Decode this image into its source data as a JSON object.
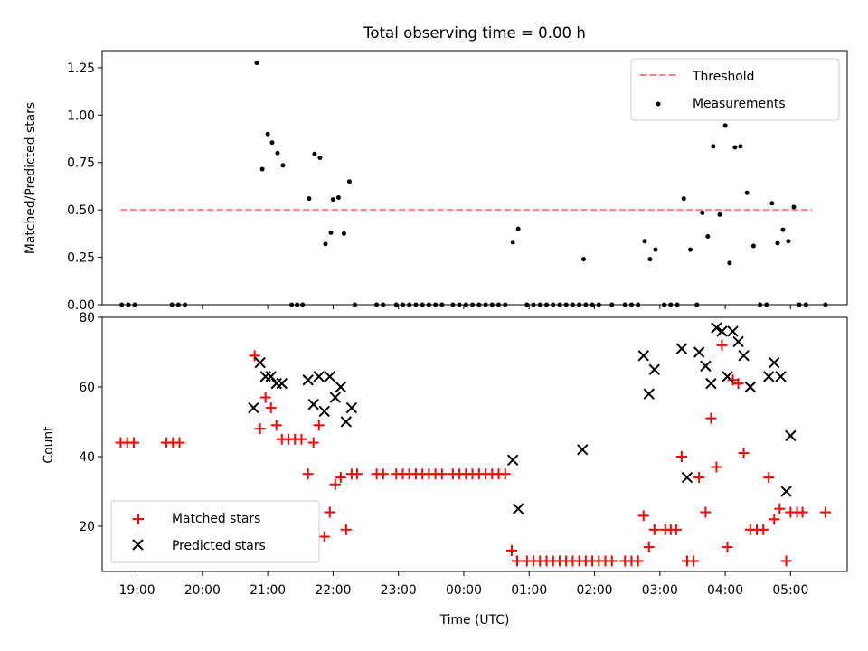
{
  "chart_data": [
    {
      "type": "scatter",
      "title": "Total observing time = 0.00 h",
      "xlabel": "",
      "ylabel": "Matched/Predicted stars",
      "ylim": [
        0,
        1.34
      ],
      "yticks": [
        "0.00",
        "0.25",
        "0.50",
        "0.75",
        "1.00",
        "1.25"
      ],
      "xlim": [
        "18:28",
        "05:52"
      ],
      "legend_position": "top-right",
      "grid": false,
      "threshold": {
        "name": "Threshold",
        "y": 0.5,
        "x_start": "18:45",
        "x_end": "05:20",
        "color": "#ff7f7f"
      },
      "series": [
        {
          "name": "Measurements",
          "color": "#000000",
          "points": [
            [
              "18:46",
              0
            ],
            [
              "18:52",
              0
            ],
            [
              "18:58",
              0
            ],
            [
              "19:32",
              0
            ],
            [
              "19:38",
              0
            ],
            [
              "19:44",
              0
            ],
            [
              "20:50",
              1.275
            ],
            [
              "20:55",
              0.715
            ],
            [
              "21:00",
              0.9
            ],
            [
              "21:04",
              0.855
            ],
            [
              "21:09",
              0.8
            ],
            [
              "21:14",
              0.735
            ],
            [
              "21:22",
              0
            ],
            [
              "21:27",
              0
            ],
            [
              "21:32",
              0
            ],
            [
              "21:38",
              0.56
            ],
            [
              "21:43",
              0.795
            ],
            [
              "21:48",
              0.775
            ],
            [
              "21:53",
              0.32
            ],
            [
              "21:58",
              0.38
            ],
            [
              "22:00",
              0.555
            ],
            [
              "22:05",
              0.565
            ],
            [
              "22:10",
              0.375
            ],
            [
              "22:15",
              0.65
            ],
            [
              "22:20",
              0
            ],
            [
              "22:40",
              0
            ],
            [
              "22:46",
              0
            ],
            [
              "22:58",
              0
            ],
            [
              "23:04",
              0
            ],
            [
              "23:10",
              0
            ],
            [
              "23:16",
              0
            ],
            [
              "23:22",
              0
            ],
            [
              "23:28",
              0
            ],
            [
              "23:34",
              0
            ],
            [
              "23:40",
              0
            ],
            [
              "23:50",
              0
            ],
            [
              "23:56",
              0
            ],
            [
              "00:02",
              0
            ],
            [
              "00:08",
              0
            ],
            [
              "00:14",
              0
            ],
            [
              "00:20",
              0
            ],
            [
              "00:26",
              0
            ],
            [
              "00:32",
              0
            ],
            [
              "00:38",
              0
            ],
            [
              "00:45",
              0.33
            ],
            [
              "00:50",
              0.4
            ],
            [
              "00:58",
              0
            ],
            [
              "01:04",
              0
            ],
            [
              "01:10",
              0
            ],
            [
              "01:16",
              0
            ],
            [
              "01:22",
              0
            ],
            [
              "01:28",
              0
            ],
            [
              "01:34",
              0
            ],
            [
              "01:40",
              0
            ],
            [
              "01:46",
              0
            ],
            [
              "01:52",
              0
            ],
            [
              "01:50",
              0.24
            ],
            [
              "01:58",
              0
            ],
            [
              "02:04",
              0
            ],
            [
              "02:16",
              0
            ],
            [
              "02:28",
              0
            ],
            [
              "02:34",
              0
            ],
            [
              "02:40",
              0
            ],
            [
              "02:46",
              0.335
            ],
            [
              "02:51",
              0.24
            ],
            [
              "02:56",
              0.29
            ],
            [
              "03:04",
              0
            ],
            [
              "03:10",
              0
            ],
            [
              "03:16",
              0
            ],
            [
              "03:22",
              0.56
            ],
            [
              "03:28",
              0.29
            ],
            [
              "03:34",
              0
            ],
            [
              "03:39",
              0.485
            ],
            [
              "03:44",
              0.36
            ],
            [
              "03:49",
              0.835
            ],
            [
              "03:55",
              0.475
            ],
            [
              "04:00",
              0.945
            ],
            [
              "04:04",
              0.22
            ],
            [
              "04:09",
              0.83
            ],
            [
              "04:14",
              0.835
            ],
            [
              "04:20",
              0.59
            ],
            [
              "04:26",
              0.31
            ],
            [
              "04:32",
              0
            ],
            [
              "04:38",
              0
            ],
            [
              "04:43",
              0.535
            ],
            [
              "04:48",
              0.325
            ],
            [
              "04:53",
              0.395
            ],
            [
              "04:58",
              0.335
            ],
            [
              "05:03",
              0.515
            ],
            [
              "05:08",
              0
            ],
            [
              "05:14",
              0
            ],
            [
              "05:32",
              0
            ]
          ]
        }
      ]
    },
    {
      "type": "scatter",
      "title": "",
      "xlabel": "Time (UTC)",
      "ylabel": "Count",
      "ylim": [
        7,
        80
      ],
      "yticks": [
        "20",
        "40",
        "60",
        "80"
      ],
      "xlim": [
        "18:28",
        "05:52"
      ],
      "xticks": [
        "19:00",
        "20:00",
        "21:00",
        "22:00",
        "23:00",
        "00:00",
        "01:00",
        "02:00",
        "03:00",
        "04:00",
        "05:00"
      ],
      "legend_position": "bottom-left",
      "grid": false,
      "series": [
        {
          "name": "Matched stars",
          "color": "#ff0000",
          "marker": "plus",
          "points": [
            [
              "18:45",
              44
            ],
            [
              "18:51",
              44
            ],
            [
              "18:57",
              44
            ],
            [
              "19:27",
              44
            ],
            [
              "19:33",
              44
            ],
            [
              "19:39",
              44
            ],
            [
              "20:48",
              69
            ],
            [
              "20:53",
              48
            ],
            [
              "20:58",
              57
            ],
            [
              "21:03",
              54
            ],
            [
              "21:08",
              49
            ],
            [
              "21:13",
              45
            ],
            [
              "21:19",
              45
            ],
            [
              "21:25",
              45
            ],
            [
              "21:31",
              45
            ],
            [
              "21:37",
              35
            ],
            [
              "21:42",
              44
            ],
            [
              "21:47",
              49
            ],
            [
              "21:52",
              17
            ],
            [
              "21:57",
              24
            ],
            [
              "22:02",
              32
            ],
            [
              "22:07",
              34
            ],
            [
              "22:12",
              19
            ],
            [
              "22:17",
              35
            ],
            [
              "22:22",
              35
            ],
            [
              "22:40",
              35
            ],
            [
              "22:46",
              35
            ],
            [
              "22:58",
              35
            ],
            [
              "23:04",
              35
            ],
            [
              "23:10",
              35
            ],
            [
              "23:16",
              35
            ],
            [
              "23:22",
              35
            ],
            [
              "23:28",
              35
            ],
            [
              "23:34",
              35
            ],
            [
              "23:40",
              35
            ],
            [
              "23:50",
              35
            ],
            [
              "23:56",
              35
            ],
            [
              "00:02",
              35
            ],
            [
              "00:08",
              35
            ],
            [
              "00:14",
              35
            ],
            [
              "00:20",
              35
            ],
            [
              "00:26",
              35
            ],
            [
              "00:32",
              35
            ],
            [
              "00:38",
              35
            ],
            [
              "00:44",
              13
            ],
            [
              "00:49",
              10
            ],
            [
              "00:58",
              10
            ],
            [
              "01:04",
              10
            ],
            [
              "01:10",
              10
            ],
            [
              "01:16",
              10
            ],
            [
              "01:22",
              10
            ],
            [
              "01:28",
              10
            ],
            [
              "01:34",
              10
            ],
            [
              "01:40",
              10
            ],
            [
              "01:46",
              10
            ],
            [
              "01:52",
              10
            ],
            [
              "01:58",
              10
            ],
            [
              "02:04",
              10
            ],
            [
              "02:10",
              10
            ],
            [
              "02:16",
              10
            ],
            [
              "02:28",
              10
            ],
            [
              "02:34",
              10
            ],
            [
              "02:40",
              10
            ],
            [
              "02:45",
              23
            ],
            [
              "02:50",
              14
            ],
            [
              "02:55",
              19
            ],
            [
              "03:05",
              19
            ],
            [
              "03:10",
              19
            ],
            [
              "03:15",
              19
            ],
            [
              "03:20",
              40
            ],
            [
              "03:25",
              10
            ],
            [
              "03:31",
              10
            ],
            [
              "03:36",
              34
            ],
            [
              "03:42",
              24
            ],
            [
              "03:47",
              51
            ],
            [
              "03:52",
              37
            ],
            [
              "03:57",
              72
            ],
            [
              "04:02",
              14
            ],
            [
              "04:07",
              62
            ],
            [
              "04:12",
              61
            ],
            [
              "04:17",
              41
            ],
            [
              "04:23",
              19
            ],
            [
              "04:29",
              19
            ],
            [
              "04:35",
              19
            ],
            [
              "04:40",
              34
            ],
            [
              "04:45",
              22
            ],
            [
              "04:50",
              25
            ],
            [
              "04:56",
              10
            ],
            [
              "05:00",
              24
            ],
            [
              "05:06",
              24
            ],
            [
              "05:11",
              24
            ],
            [
              "05:32",
              24
            ]
          ]
        },
        {
          "name": "Predicted stars",
          "color": "#000000",
          "marker": "x",
          "points": [
            [
              "20:47",
              54
            ],
            [
              "20:53",
              67
            ],
            [
              "20:58",
              63
            ],
            [
              "21:03",
              63
            ],
            [
              "21:08",
              61
            ],
            [
              "21:13",
              61
            ],
            [
              "21:37",
              62
            ],
            [
              "21:42",
              55
            ],
            [
              "21:47",
              63
            ],
            [
              "21:52",
              53
            ],
            [
              "21:57",
              63
            ],
            [
              "22:02",
              57
            ],
            [
              "22:07",
              60
            ],
            [
              "22:12",
              50
            ],
            [
              "22:17",
              54
            ],
            [
              "00:45",
              39
            ],
            [
              "00:50",
              25
            ],
            [
              "01:49",
              42
            ],
            [
              "02:45",
              69
            ],
            [
              "02:50",
              58
            ],
            [
              "02:55",
              65
            ],
            [
              "03:20",
              71
            ],
            [
              "03:25",
              34
            ],
            [
              "03:36",
              70
            ],
            [
              "03:42",
              66
            ],
            [
              "03:47",
              61
            ],
            [
              "03:52",
              77
            ],
            [
              "03:57",
              76
            ],
            [
              "04:02",
              63
            ],
            [
              "04:07",
              76
            ],
            [
              "04:12",
              73
            ],
            [
              "04:17",
              69
            ],
            [
              "04:23",
              60
            ],
            [
              "04:40",
              63
            ],
            [
              "04:45",
              67
            ],
            [
              "04:51",
              63
            ],
            [
              "04:56",
              30
            ],
            [
              "05:00",
              46
            ]
          ]
        }
      ]
    }
  ]
}
